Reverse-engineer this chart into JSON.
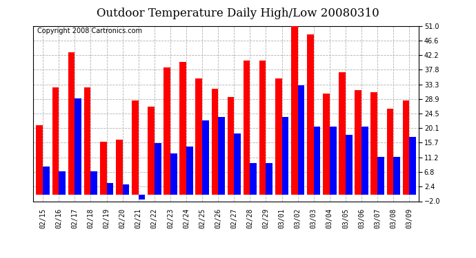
{
  "title": "Outdoor Temperature Daily High/Low 20080310",
  "copyright": "Copyright 2008 Cartronics.com",
  "dates": [
    "02/15",
    "02/16",
    "02/17",
    "02/18",
    "02/19",
    "02/20",
    "02/21",
    "02/22",
    "02/23",
    "02/24",
    "02/25",
    "02/26",
    "02/27",
    "02/28",
    "02/29",
    "03/01",
    "03/02",
    "03/03",
    "03/04",
    "03/05",
    "03/06",
    "03/07",
    "03/08",
    "03/09"
  ],
  "highs": [
    21.0,
    32.5,
    43.0,
    32.5,
    16.0,
    16.5,
    28.5,
    26.5,
    38.5,
    40.0,
    35.0,
    32.0,
    29.5,
    40.5,
    40.5,
    35.0,
    51.5,
    48.5,
    30.5,
    37.0,
    31.5,
    31.0,
    26.0,
    28.5
  ],
  "lows": [
    8.5,
    7.0,
    29.0,
    7.0,
    3.5,
    3.0,
    -1.5,
    15.5,
    12.5,
    14.5,
    22.5,
    23.5,
    18.5,
    9.5,
    9.5,
    23.5,
    33.0,
    20.5,
    20.5,
    18.0,
    20.5,
    11.5,
    11.5,
    17.5
  ],
  "ylim": [
    -2.0,
    51.0
  ],
  "yticks": [
    -2.0,
    2.4,
    6.8,
    11.2,
    15.7,
    20.1,
    24.5,
    28.9,
    33.3,
    37.8,
    42.2,
    46.6,
    51.0
  ],
  "high_color": "#ff0000",
  "low_color": "#0000ff",
  "bg_color": "#ffffff",
  "grid_color": "#b0b0b0",
  "title_fontsize": 12,
  "tick_fontsize": 7,
  "copyright_fontsize": 7
}
